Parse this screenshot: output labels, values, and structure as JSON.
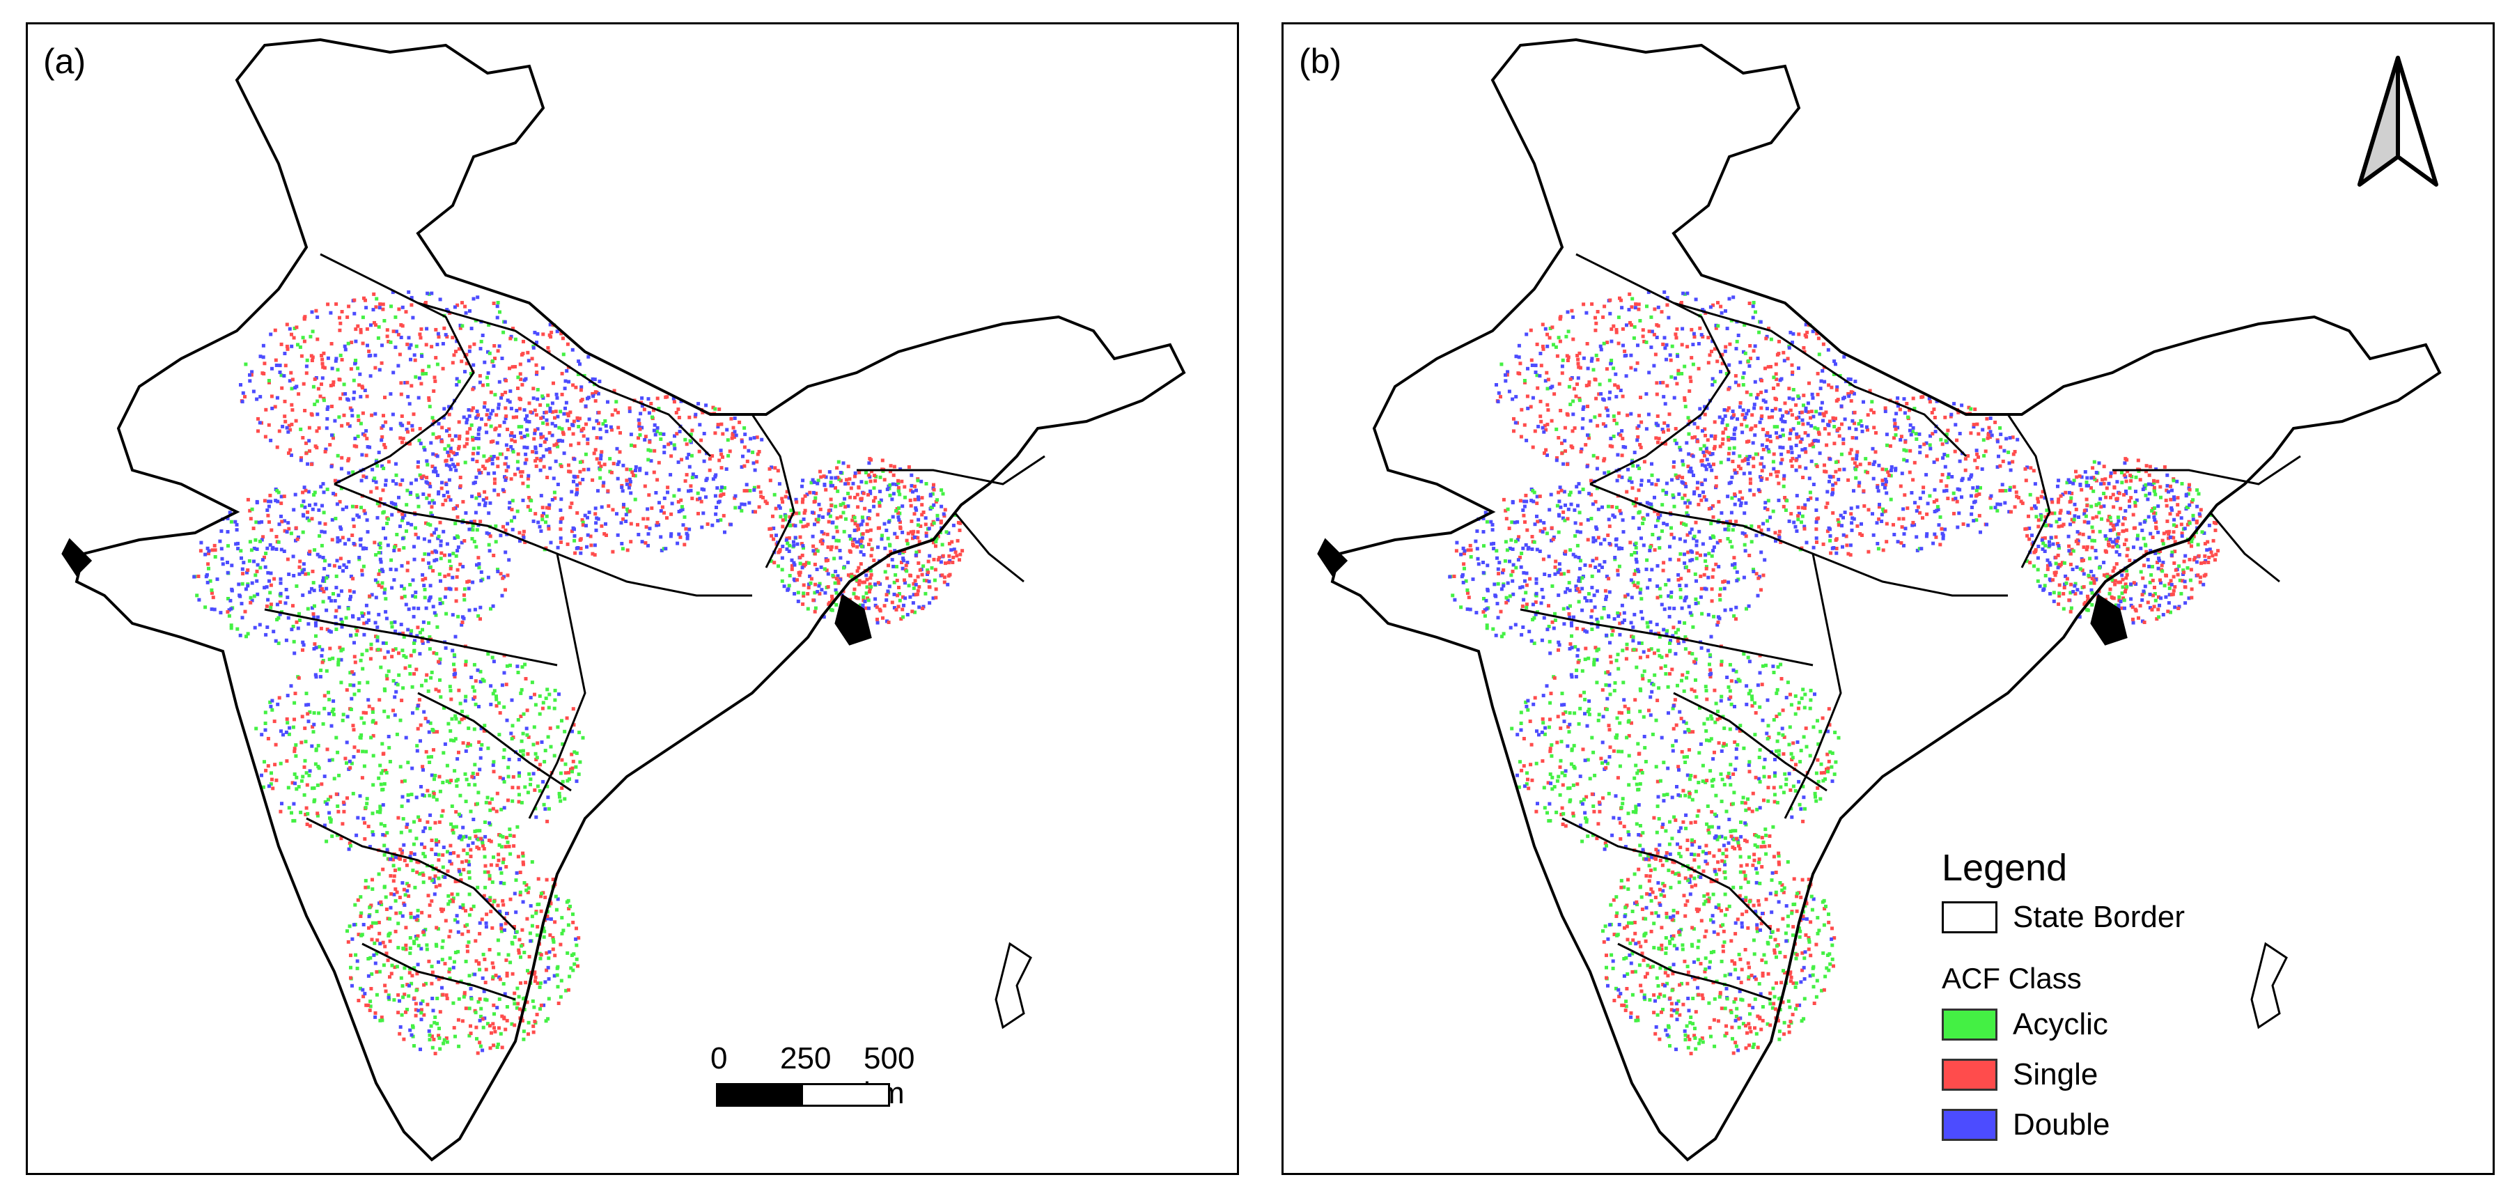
{
  "panels": [
    {
      "label": "(a)"
    },
    {
      "label": "(b)"
    }
  ],
  "scalebar": {
    "labels": [
      "0",
      "250",
      "500 km"
    ]
  },
  "legend": {
    "title": "Legend",
    "border_label": "State Border",
    "class_title": "ACF Class",
    "classes": [
      {
        "name": "Acyclic",
        "color": "#44f044"
      },
      {
        "name": "Single",
        "color": "#ff4c4c"
      },
      {
        "name": "Double",
        "color": "#4c4cff"
      }
    ]
  },
  "colors": {
    "acyclic": "#44f044",
    "single": "#ff4c4c",
    "double": "#4c4cff",
    "border": "#000000"
  }
}
